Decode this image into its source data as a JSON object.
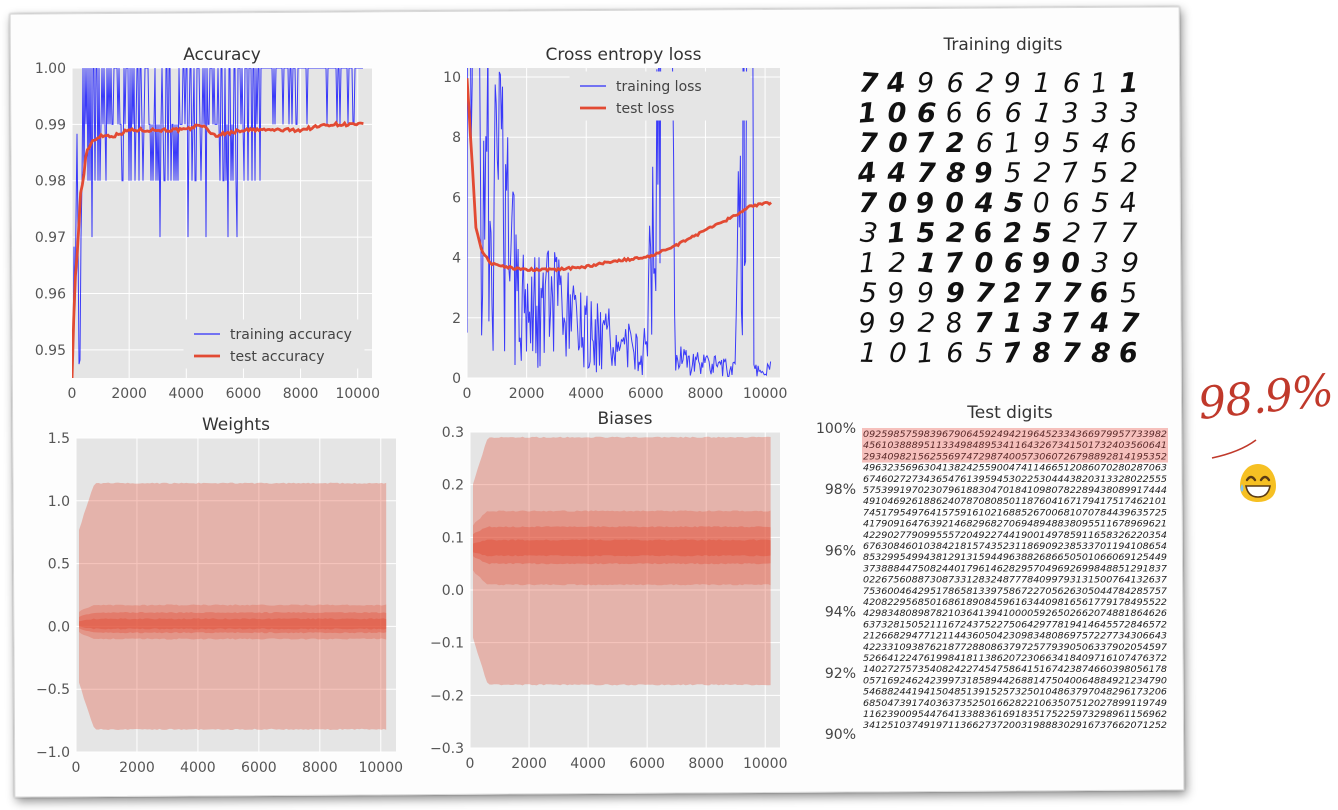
{
  "score_note": "98.9%",
  "chart_data": [
    {
      "id": "accuracy",
      "type": "line",
      "title": "Accuracy",
      "xlabel": "",
      "ylabel": "",
      "xlim": [
        0,
        10500
      ],
      "ylim": [
        0.945,
        1.0
      ],
      "xticks": [
        0,
        2000,
        4000,
        6000,
        8000,
        10000
      ],
      "yticks": [
        0.95,
        0.96,
        0.97,
        0.98,
        0.99,
        1.0
      ],
      "ytick_labels": [
        "0.95",
        "0.96",
        "0.97",
        "0.98",
        "0.99",
        "1.00"
      ],
      "grid": true,
      "legend_position": "lower-right",
      "series": [
        {
          "name": "training accuracy",
          "color": "#0000ff",
          "x": [
            0,
            100,
            200,
            300,
            400,
            500,
            600,
            800,
            1000,
            1500,
            2000,
            3000,
            4000,
            5000,
            6000,
            7000,
            8000,
            9000,
            10000
          ],
          "y": [
            0.945,
            0.97,
            0.98,
            0.95,
            0.98,
            0.99,
            1.0,
            0.97,
            0.99,
            0.98,
            1.0,
            0.98,
            0.99,
            0.98,
            1.0,
            1.0,
            1.0,
            1.0,
            1.0
          ]
        },
        {
          "name": "test accuracy",
          "color": "#e24a33",
          "x": [
            0,
            100,
            200,
            300,
            400,
            500,
            700,
            1000,
            1500,
            2000,
            3000,
            4000,
            4500,
            5000,
            6000,
            7000,
            8000,
            9000,
            10000
          ],
          "y": [
            0.945,
            0.962,
            0.968,
            0.978,
            0.98,
            0.985,
            0.987,
            0.988,
            0.988,
            0.989,
            0.989,
            0.989,
            0.99,
            0.988,
            0.989,
            0.989,
            0.989,
            0.99,
            0.99
          ]
        }
      ]
    },
    {
      "id": "cross-entropy",
      "type": "line",
      "title": "Cross entropy loss",
      "xlabel": "",
      "ylabel": "",
      "xlim": [
        0,
        10500
      ],
      "ylim": [
        0,
        10.3
      ],
      "xticks": [
        0,
        2000,
        4000,
        6000,
        8000,
        10000
      ],
      "yticks": [
        0,
        2,
        4,
        6,
        8,
        10
      ],
      "ytick_labels": [
        "0",
        "2",
        "4",
        "6",
        "8",
        "10"
      ],
      "grid": true,
      "legend_position": "upper-right",
      "series": [
        {
          "name": "training loss",
          "color": "#0000ff",
          "x": [
            0,
            200,
            400,
            600,
            1000,
            1500,
            2000,
            3000,
            4000,
            5000,
            6000,
            6800,
            7000,
            8000,
            9000,
            9400,
            9600,
            10000
          ],
          "y": [
            10,
            10,
            7,
            5,
            4,
            3,
            2,
            1.5,
            1,
            0.8,
            0.6,
            10,
            0.4,
            0.3,
            0.2,
            10,
            0.2,
            0.2
          ]
        },
        {
          "name": "test loss",
          "color": "#e24a33",
          "x": [
            0,
            150,
            300,
            500,
            800,
            1200,
            2000,
            3000,
            4000,
            5000,
            6000,
            6500,
            7000,
            8000,
            9000,
            9500,
            10000
          ],
          "y": [
            10,
            7.5,
            5,
            4.2,
            3.8,
            3.7,
            3.6,
            3.6,
            3.7,
            3.9,
            4.0,
            4.2,
            4.4,
            4.9,
            5.4,
            5.7,
            5.8
          ]
        }
      ]
    },
    {
      "id": "weights",
      "type": "area",
      "title": "Weights",
      "xlabel": "",
      "ylabel": "",
      "xlim": [
        0,
        10500
      ],
      "ylim": [
        -1.0,
        1.5
      ],
      "xticks": [
        0,
        2000,
        4000,
        6000,
        8000,
        10000
      ],
      "yticks": [
        -1.0,
        -0.5,
        0.0,
        0.5,
        1.0,
        1.5
      ],
      "ytick_labels": [
        "−1.0",
        "−0.5",
        "0.0",
        "0.5",
        "1.0",
        "1.5"
      ],
      "grid": true,
      "color": "#e24a33",
      "bands": [
        {
          "low": -0.82,
          "high": 1.14
        },
        {
          "low": -0.1,
          "high": 0.17
        },
        {
          "low": -0.05,
          "high": 0.11
        },
        {
          "low": -0.02,
          "high": 0.06
        }
      ]
    },
    {
      "id": "biases",
      "type": "area",
      "title": "Biases",
      "xlabel": "",
      "ylabel": "",
      "xlim": [
        0,
        10500
      ],
      "ylim": [
        -0.3,
        0.3
      ],
      "xticks": [
        0,
        2000,
        4000,
        6000,
        8000,
        10000
      ],
      "yticks": [
        -0.3,
        -0.2,
        -0.1,
        0.0,
        0.1,
        0.2,
        0.3
      ],
      "ytick_labels": [
        "−0.3",
        "−0.2",
        "−0.1",
        "0.0",
        "0.1",
        "0.2",
        "0.3"
      ],
      "grid": true,
      "color": "#e24a33",
      "bands": [
        {
          "low": -0.18,
          "high": 0.29
        },
        {
          "low": 0.01,
          "high": 0.15
        },
        {
          "low": 0.05,
          "high": 0.12
        },
        {
          "low": 0.065,
          "high": 0.095
        }
      ]
    },
    {
      "id": "training-digits",
      "type": "table",
      "title": "Training digits",
      "rows": [
        "7496291611",
        "1066661333",
        "7072619546",
        "4478952752",
        "7090450654",
        "3152625277",
        "1217069039",
        "5999727765",
        "9928713747",
        "1016578786"
      ]
    },
    {
      "id": "test-digits",
      "type": "table",
      "title": "Test digits",
      "yticks": [
        90,
        92,
        94,
        96,
        98,
        100
      ],
      "ytick_labels": [
        "90%",
        "92%",
        "94%",
        "96%",
        "98%",
        "100%"
      ],
      "highlight_color": "#f4b5b0",
      "highlight_rows": 3
    }
  ]
}
